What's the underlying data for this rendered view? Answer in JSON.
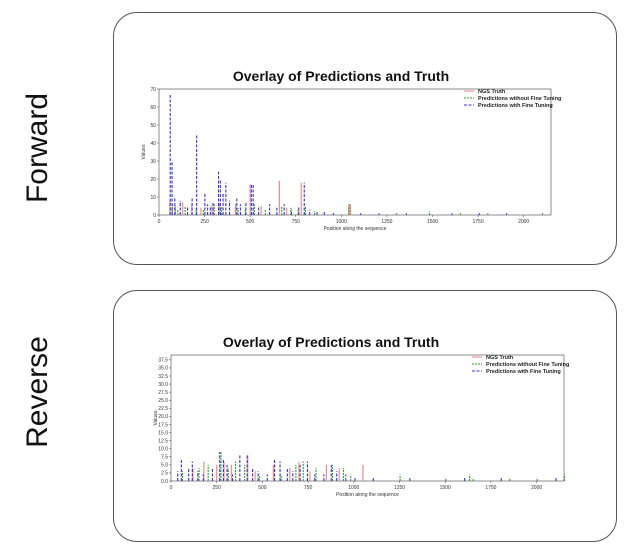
{
  "labels": {
    "forward": "Forward",
    "reverse": "Reverse"
  },
  "colors": {
    "truth": "#f08080",
    "no_ft": "#2ca02c",
    "ft": "#3333cc",
    "axis": "#444444"
  },
  "chart_data": [
    {
      "id": "forward",
      "type": "bar",
      "title": "Overlay of Predictions and Truth",
      "xlabel": "Position along the sequence",
      "ylabel": "Values",
      "xlim": [
        0,
        2150
      ],
      "ylim": [
        0,
        70
      ],
      "xticks": [
        0,
        250,
        500,
        750,
        1000,
        1250,
        1500,
        1750,
        2000
      ],
      "yticks": [
        0,
        10,
        20,
        30,
        40,
        50,
        60,
        70
      ],
      "legend": {
        "placement": "top-right",
        "entries": [
          "NGS Truth",
          "Predictions without Fine Tuning",
          "Predictions with Fine Tuning"
        ]
      },
      "series": [
        {
          "name": "NGS Truth",
          "x": [
            60,
            90,
            130,
            180,
            230,
            290,
            330,
            420,
            500,
            560,
            660,
            700,
            780,
            1040,
            1050
          ],
          "values": [
            8,
            5,
            7,
            6,
            4,
            5,
            7,
            6,
            17,
            5,
            19,
            4,
            18,
            5,
            6
          ]
        },
        {
          "name": "Predictions without Fine Tuning",
          "x": [
            70,
            100,
            140,
            200,
            240,
            300,
            340,
            430,
            470,
            520,
            580,
            670,
            720,
            760,
            800,
            850,
            1040,
            1300,
            1480,
            1650,
            1800,
            2100
          ],
          "values": [
            6,
            3,
            5,
            4,
            3,
            6,
            5,
            4,
            3,
            6,
            3,
            5,
            4,
            3,
            5,
            2,
            6,
            1,
            2,
            1,
            1,
            1
          ]
        },
        {
          "name": "Predictions with Fine Tuning",
          "x": [
            55,
            65,
            80,
            110,
            150,
            175,
            200,
            245,
            260,
            275,
            290,
            320,
            330,
            345,
            360,
            380,
            420,
            440,
            470,
            500,
            510,
            540,
            600,
            640,
            680,
            720,
            760,
            790,
            820,
            860,
            900,
            950,
            1100,
            1200,
            1350,
            1600,
            1750,
            1900
          ],
          "values": [
            67,
            30,
            10,
            8,
            5,
            10,
            45,
            12,
            6,
            5,
            7,
            24,
            20,
            12,
            18,
            8,
            10,
            6,
            7,
            17,
            17,
            5,
            6,
            4,
            6,
            3,
            5,
            18,
            3,
            2,
            2,
            1,
            1,
            1,
            1,
            1,
            1,
            1
          ]
        }
      ]
    },
    {
      "id": "reverse",
      "type": "bar",
      "title": "Overlay of Predictions and Truth",
      "xlabel": "Position along the sequence",
      "ylabel": "Values",
      "xlim": [
        0,
        2150
      ],
      "ylim": [
        0,
        39
      ],
      "xticks": [
        0,
        250,
        500,
        750,
        1000,
        1250,
        1500,
        1750,
        2000
      ],
      "xticklabels": [
        "0",
        "250",
        "500",
        "750",
        "1000",
        "1250",
        "1500",
        "1750",
        "2000"
      ],
      "yticks": [
        0,
        2.5,
        5,
        7.5,
        10,
        12.5,
        15,
        17.5,
        20,
        22.5,
        25,
        27.5,
        30,
        32.5,
        35,
        37.5
      ],
      "yticklabels": [
        "0.0",
        "2.5",
        "5.0",
        "7.5",
        "10.0",
        "12.5",
        "15.0",
        "17.5",
        "20.0",
        "22.5",
        "25.0",
        "27.5",
        "30.0",
        "32.5",
        "35.0",
        "37.5"
      ],
      "legend": {
        "placement": "top-right",
        "entries": [
          "NGS Truth",
          "Predictions without Fine Tuning",
          "Predictions with Fine Tuning"
        ]
      },
      "series": [
        {
          "name": "NGS Truth",
          "x": [
            120,
            180,
            250,
            290,
            330,
            420,
            460,
            560,
            650,
            700,
            760,
            850,
            920,
            1050
          ],
          "values": [
            4,
            6,
            5,
            6,
            5,
            8,
            3,
            5,
            4,
            6,
            3,
            5,
            4,
            5
          ]
        },
        {
          "name": "Predictions without Fine Tuning",
          "x": [
            60,
            150,
            200,
            270,
            310,
            350,
            400,
            480,
            600,
            680,
            720,
            790,
            880,
            940,
            980,
            1250,
            1500,
            1630,
            1650,
            1850,
            2000,
            2150
          ],
          "values": [
            3,
            4,
            5,
            9,
            4,
            6,
            5,
            2,
            2,
            5,
            6,
            4,
            5,
            4,
            2,
            2,
            1,
            2,
            1,
            1,
            1,
            2
          ]
        },
        {
          "name": "Predictions with Fine Tuning",
          "x": [
            30,
            50,
            90,
            110,
            140,
            170,
            220,
            260,
            280,
            300,
            330,
            370,
            410,
            440,
            470,
            520,
            560,
            590,
            630,
            660,
            700,
            740,
            780,
            830,
            870,
            900,
            950,
            1000,
            1100,
            1300,
            1600,
            1800,
            2100
          ],
          "values": [
            3,
            7,
            4,
            6,
            3,
            2,
            4,
            9,
            7,
            5,
            2,
            8,
            8,
            4,
            3,
            2,
            7,
            6,
            4,
            3,
            5,
            6,
            2,
            2,
            5,
            3,
            2,
            1,
            1,
            1,
            1,
            1,
            1
          ]
        }
      ]
    }
  ]
}
